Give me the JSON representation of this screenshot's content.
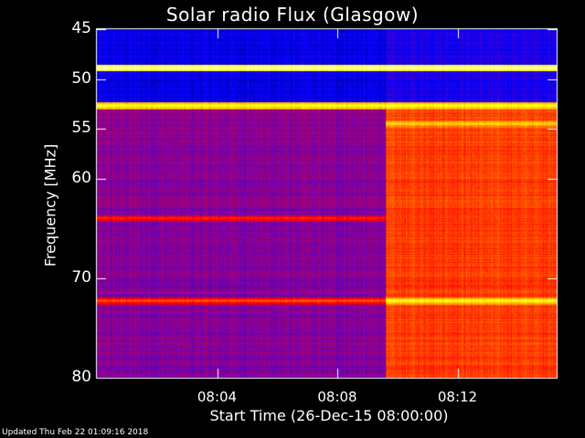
{
  "chart_data": {
    "type": "heatmap",
    "title": "Solar radio Flux (Glasgow)",
    "xlabel": "Start Time (26-Dec-15 08:00:00)",
    "ylabel": "Frequency [MHz]",
    "x_unit": "minutes after 08:00",
    "xlim": [
      0,
      15.3
    ],
    "ylim": [
      45,
      80
    ],
    "y_axis_reversed": true,
    "y_ticks": [
      45,
      50,
      55,
      60,
      70,
      80
    ],
    "x_ticks": [
      {
        "value": 4,
        "label": "08:04"
      },
      {
        "value": 8,
        "label": "08:08"
      },
      {
        "value": 12,
        "label": "08:12"
      }
    ],
    "colormap": [
      "#000000",
      "#0000ff",
      "#8000a0",
      "#ff0000",
      "#ff8000",
      "#ffff00",
      "#ffffff"
    ],
    "level_scale": "0 = lowest intensity (black), 1 = highest intensity (white)",
    "regions": [
      {
        "x": [
          0,
          9.6
        ],
        "y": [
          45,
          52.5
        ],
        "level": 0.16
      },
      {
        "x": [
          0,
          9.6
        ],
        "y": [
          52.5,
          80
        ],
        "level": 0.34
      },
      {
        "x": [
          9.6,
          15.3
        ],
        "y": [
          45,
          52.5
        ],
        "level": 0.2
      },
      {
        "x": [
          9.6,
          15.3
        ],
        "y": [
          52.5,
          80
        ],
        "level": 0.58
      }
    ],
    "bands": [
      {
        "freq": 48.9,
        "level": 0.95
      },
      {
        "freq": 52.7,
        "level": 0.85
      },
      {
        "freq": 54.5,
        "level": 0.78,
        "x": [
          9.6,
          15.3
        ]
      },
      {
        "freq": 64.0,
        "level": 0.55
      },
      {
        "freq": 72.3,
        "level": 0.6
      },
      {
        "freq": 72.3,
        "level": 0.85,
        "x": [
          9.6,
          15.3
        ]
      }
    ]
  },
  "footer": "Updated Thu Feb 22 01:09:16 2018"
}
